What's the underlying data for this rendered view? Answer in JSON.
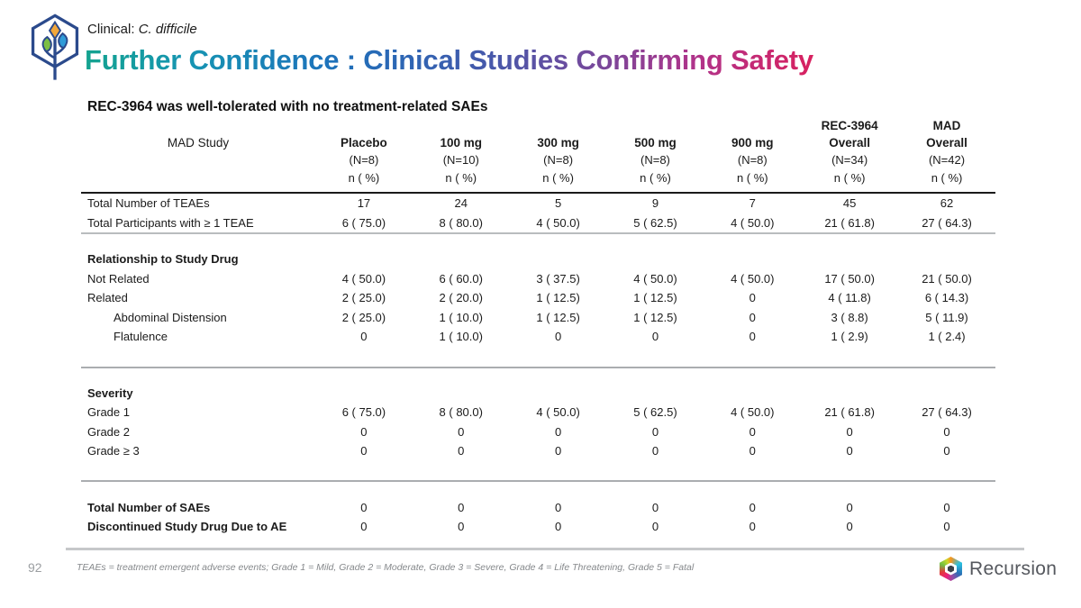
{
  "header": {
    "eyebrow_prefix": "Clinical: ",
    "eyebrow_italic": "C. difficile",
    "title_segments": [
      {
        "text": "Further Confidence : ",
        "color": "#14A095"
      },
      {
        "text": "Clinical Studies ",
        "color": "#1D73BB"
      },
      {
        "text": "Confirming ",
        "color": "#6A4BA0"
      },
      {
        "text": "Safety",
        "color": "#D02670"
      }
    ]
  },
  "subtitle": "REC-3964 was well-tolerated with no treatment-related SAEs",
  "table": {
    "row_header": "MAD Study",
    "stat_label": "n  ( %)",
    "columns": [
      {
        "lines": [
          "Placebo"
        ],
        "n": "(N=8)",
        "stat": "n  ( %)"
      },
      {
        "lines": [
          "100 mg"
        ],
        "n": "(N=10)",
        "stat": "n  ( %)"
      },
      {
        "lines": [
          "300 mg"
        ],
        "n": "(N=8)",
        "stat": "n  ( %)"
      },
      {
        "lines": [
          "500 mg"
        ],
        "n": "(N=8)",
        "stat": "n  ( %)"
      },
      {
        "lines": [
          "900 mg"
        ],
        "n": "(N=8)",
        "stat": "n  ( %)"
      },
      {
        "lines": [
          "REC-3964",
          "Overall"
        ],
        "n": "(N=34)",
        "stat": "n  ( %)"
      },
      {
        "lines": [
          "MAD",
          "Overall"
        ],
        "n": "(N=42)",
        "stat": "n  ( %)"
      }
    ],
    "rows": [
      {
        "label": "Total Number of TEAEs",
        "style": "normal",
        "values": [
          "17",
          "24",
          "5",
          "9",
          "7",
          "45",
          "62"
        ]
      },
      {
        "label": "Total Participants with ≥ 1 TEAE",
        "style": "normal",
        "border": "gray",
        "values": [
          "6 ( 75.0)",
          "8 ( 80.0)",
          "4 ( 50.0)",
          "5 ( 62.5)",
          "4 ( 50.0)",
          "21 ( 61.8)",
          "27 ( 64.3)"
        ]
      },
      {
        "type": "spacer",
        "h": 17
      },
      {
        "label": "Relationship to Study Drug",
        "style": "section",
        "values": [
          "",
          "",
          "",
          "",
          "",
          "",
          ""
        ]
      },
      {
        "label": "Not Related",
        "style": "normal",
        "values": [
          "4 ( 50.0)",
          "6 ( 60.0)",
          "3 ( 37.5)",
          "4 ( 50.0)",
          "4 ( 50.0)",
          "17 ( 50.0)",
          "21 ( 50.0)"
        ]
      },
      {
        "label": "Related",
        "style": "normal",
        "values": [
          "2 ( 25.0)",
          "2 ( 20.0)",
          "1 ( 12.5)",
          "1 ( 12.5)",
          "0",
          "4 ( 11.8)",
          "6 ( 14.3)"
        ]
      },
      {
        "label": "Abdominal Distension",
        "style": "indent",
        "values": [
          "2 ( 25.0)",
          "1 ( 10.0)",
          "1 ( 12.5)",
          "1 ( 12.5)",
          "0",
          "3 (  8.8)",
          "5 ( 11.9)"
        ]
      },
      {
        "label": "Flatulence",
        "style": "indent",
        "values": [
          "0",
          "1 ( 10.0)",
          "0",
          "0",
          "0",
          "1 (  2.9)",
          "1 (  2.4)"
        ]
      },
      {
        "type": "spacer",
        "h": 22
      },
      {
        "type": "divider"
      },
      {
        "type": "spacer",
        "h": 17
      },
      {
        "label": "Severity",
        "style": "section",
        "values": [
          "",
          "",
          "",
          "",
          "",
          "",
          ""
        ]
      },
      {
        "label": "Grade 1",
        "style": "normal",
        "values": [
          "6 ( 75.0)",
          "8 ( 80.0)",
          "4 ( 50.0)",
          "5 ( 62.5)",
          "4 ( 50.0)",
          "21 ( 61.8)",
          "27 ( 64.3)"
        ]
      },
      {
        "label": "Grade 2",
        "style": "normal",
        "values": [
          "0",
          "0",
          "0",
          "0",
          "0",
          "0",
          "0"
        ]
      },
      {
        "label": "Grade ≥ 3",
        "style": "normal",
        "values": [
          "0",
          "0",
          "0",
          "0",
          "0",
          "0",
          "0"
        ]
      },
      {
        "type": "spacer",
        "h": 21
      },
      {
        "type": "divider"
      },
      {
        "type": "spacer",
        "h": 18
      },
      {
        "label": "Total Number of SAEs",
        "style": "bold",
        "values": [
          "0",
          "0",
          "0",
          "0",
          "0",
          "0",
          "0"
        ]
      },
      {
        "label": "Discontinued Study Drug Due to AE",
        "style": "bold",
        "values": [
          "0",
          "0",
          "0",
          "0",
          "0",
          "0",
          "0"
        ]
      }
    ]
  },
  "footer": {
    "page_number": "92",
    "footnote": "TEAEs = treatment emergent adverse events; Grade 1 = Mild, Grade 2 = Moderate, Grade 3 = Severe, Grade 4 = Life Threatening, Grade 5 = Fatal",
    "brand": "Recursion"
  },
  "colors": {
    "rule_heavy": "#1a1a1a",
    "rule_gray": "#aaadb0",
    "logo_outline_blue": "#2B4A8C",
    "logo_leaf_green": "#7CBF44",
    "logo_leaf_blue": "#2F9BD8",
    "logo_bud_yellow": "#F2A73B"
  }
}
